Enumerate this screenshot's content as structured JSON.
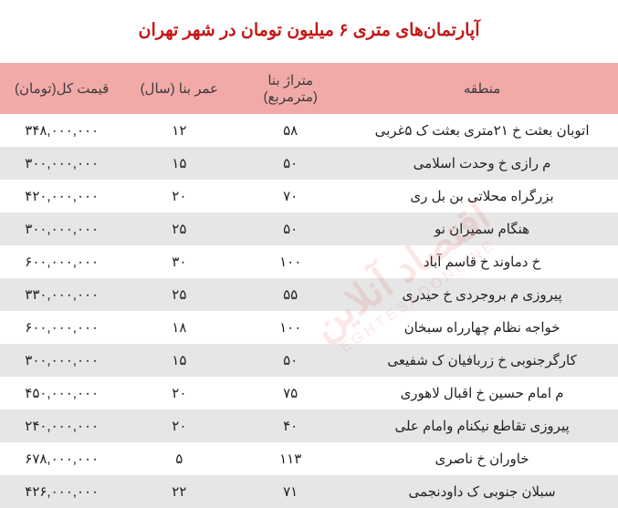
{
  "title": {
    "text": "آپارتمان‌های متری ۶ میلیون تومان در شهر تهران",
    "color": "#c41818",
    "background": "#ffffff"
  },
  "watermark": {
    "line1": "اقتصاد آنلاین",
    "line2": "EGHTESADONLINE"
  },
  "table": {
    "header_background": "#f2aaa9",
    "header_color": "#3b3b3b",
    "row_alt_background": "#e6e6e6",
    "row_color": "#222222",
    "columns": [
      {
        "key": "region",
        "label": "منطقه"
      },
      {
        "key": "area",
        "label": "متراژ بنا (مترمربع)"
      },
      {
        "key": "age",
        "label": "عمر بنا (سال)"
      },
      {
        "key": "price",
        "label": "قیمت کل(تومان)"
      }
    ],
    "rows": [
      {
        "region": "اتوبان بعثت خ ۲۱متری بعثت ک ۵غربی",
        "area": "۵۸",
        "age": "۱۲",
        "price": "۳۴۸,۰۰۰,۰۰۰"
      },
      {
        "region": "م رازی خ وحدت اسلامی",
        "area": "۵۰",
        "age": "۱۵",
        "price": "۳۰۰,۰۰۰,۰۰۰"
      },
      {
        "region": "بزرگراه محلاتی بن بل ری",
        "area": "۷۰",
        "age": "۲۰",
        "price": "۴۲۰,۰۰۰,۰۰۰"
      },
      {
        "region": "هنگام سمیران نو",
        "area": "۵۰",
        "age": "۲۵",
        "price": "۳۰۰,۰۰۰,۰۰۰"
      },
      {
        "region": "خ دماوند خ قاسم آباد",
        "area": "۱۰۰",
        "age": "۳۰",
        "price": "۶۰۰,۰۰۰,۰۰۰"
      },
      {
        "region": "پیروزی م بروجردی خ حیدری",
        "area": "۵۵",
        "age": "۲۵",
        "price": "۳۳۰,۰۰۰,۰۰۰"
      },
      {
        "region": "خواجه نظام چهارراه سبخان",
        "area": "۱۰۰",
        "age": "۱۸",
        "price": "۶۰۰,۰۰۰,۰۰۰"
      },
      {
        "region": "کارگرجنوبی خ زربافیان ک شفیعی",
        "area": "۵۰",
        "age": "۱۵",
        "price": "۳۰۰,۰۰۰,۰۰۰"
      },
      {
        "region": "م امام حسین خ اقبال لاهوری",
        "area": "۷۵",
        "age": "۲۰",
        "price": "۴۵۰,۰۰۰,۰۰۰"
      },
      {
        "region": "پیروزی تقاطع نیکنام وامام علی",
        "area": "۴۰",
        "age": "۲۰",
        "price": "۲۴۰,۰۰۰,۰۰۰"
      },
      {
        "region": "خاوران خ ناصری",
        "area": "۱۱۳",
        "age": "۵",
        "price": "۶۷۸,۰۰۰,۰۰۰"
      },
      {
        "region": "سبلان جنوبی ک داودنجمی",
        "area": "۷۱",
        "age": "۲۲",
        "price": "۴۲۶,۰۰۰,۰۰۰"
      }
    ]
  }
}
